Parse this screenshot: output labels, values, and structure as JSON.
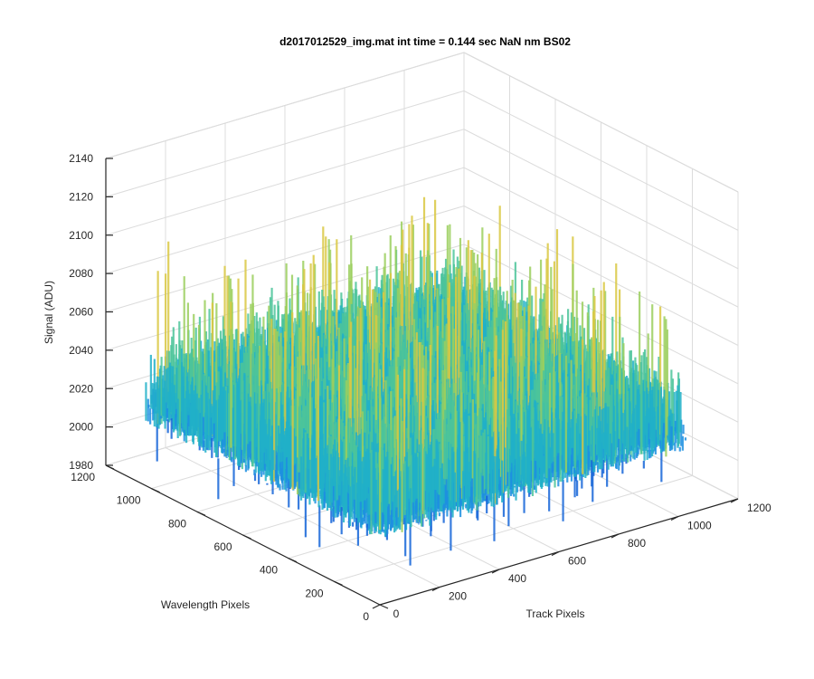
{
  "chart_data": {
    "type": "surface",
    "title": "d2017012529_img.mat int time = 0.144 sec  NaN nm BS02",
    "xlabel": "Track Pixels",
    "ylabel": "Wavelength Pixels",
    "zlabel": "Signal (ADU)",
    "xlim": [
      0,
      1200
    ],
    "ylim": [
      0,
      1200
    ],
    "zlim": [
      1980,
      2140
    ],
    "x_ticks": [
      "0",
      "200",
      "400",
      "600",
      "800",
      "1000",
      "1200"
    ],
    "y_ticks": [
      "0",
      "200",
      "400",
      "600",
      "800",
      "1000",
      "1200"
    ],
    "z_ticks": [
      "1980",
      "2000",
      "2020",
      "2040",
      "2060",
      "2080",
      "2100",
      "2120",
      "2140"
    ],
    "data_extent": {
      "x": [
        0,
        1024
      ],
      "y": [
        0,
        1024
      ]
    },
    "mean_signal": 2035,
    "noise_range": [
      2005,
      2105
    ],
    "colormap": [
      "#1565d8",
      "#1d8fe0",
      "#21b0c8",
      "#4cc49a",
      "#9bcf5e",
      "#d9c842"
    ],
    "grid": true
  }
}
